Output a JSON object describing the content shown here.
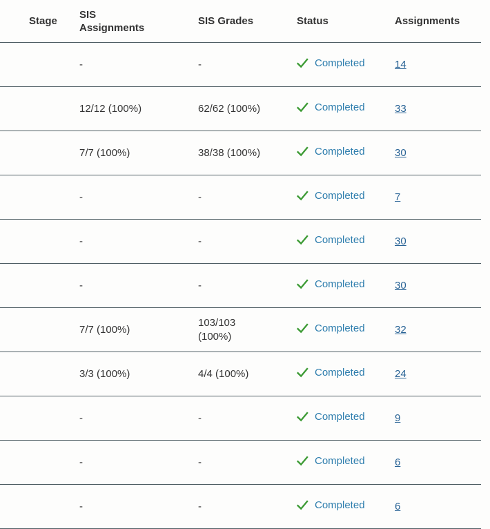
{
  "table": {
    "columns": [
      {
        "key": "stage",
        "label": "Stage"
      },
      {
        "key": "sis_assignments",
        "label": "SIS Assignments"
      },
      {
        "key": "sis_grades",
        "label": "SIS Grades"
      },
      {
        "key": "status",
        "label": "Status"
      },
      {
        "key": "assignments",
        "label": "Assignments"
      }
    ],
    "rows": [
      {
        "stage": "",
        "sis_assignments": "-",
        "sis_grades": "-",
        "status": "Completed",
        "assignments": "14"
      },
      {
        "stage": "",
        "sis_assignments": "12/12 (100%)",
        "sis_grades": "62/62 (100%)",
        "status": "Completed",
        "assignments": "33"
      },
      {
        "stage": "",
        "sis_assignments": "7/7 (100%)",
        "sis_grades": "38/38 (100%)",
        "status": "Completed",
        "assignments": "30"
      },
      {
        "stage": "",
        "sis_assignments": "-",
        "sis_grades": "-",
        "status": "Completed",
        "assignments": "7"
      },
      {
        "stage": "",
        "sis_assignments": "-",
        "sis_grades": "-",
        "status": "Completed",
        "assignments": "30"
      },
      {
        "stage": "",
        "sis_assignments": "-",
        "sis_grades": "-",
        "status": "Completed",
        "assignments": "30"
      },
      {
        "stage": "",
        "sis_assignments": "7/7 (100%)",
        "sis_grades": "103/103 (100%)",
        "status": "Completed",
        "assignments": "32"
      },
      {
        "stage": "",
        "sis_assignments": "3/3 (100%)",
        "sis_grades": "4/4 (100%)",
        "status": "Completed",
        "assignments": "24"
      },
      {
        "stage": "",
        "sis_assignments": "-",
        "sis_grades": "-",
        "status": "Completed",
        "assignments": "9"
      },
      {
        "stage": "",
        "sis_assignments": "-",
        "sis_grades": "-",
        "status": "Completed",
        "assignments": "6"
      },
      {
        "stage": "",
        "sis_assignments": "-",
        "sis_grades": "-",
        "status": "Completed",
        "assignments": "6"
      }
    ],
    "status_icon": "check-icon",
    "colors": {
      "background": "#fdfdfc",
      "header_text": "#333333",
      "cell_text": "#333333",
      "border": "#4e5d63",
      "check_green": "#3d9b35",
      "completed_text": "#2d7dad",
      "link": "#2a6496"
    }
  }
}
